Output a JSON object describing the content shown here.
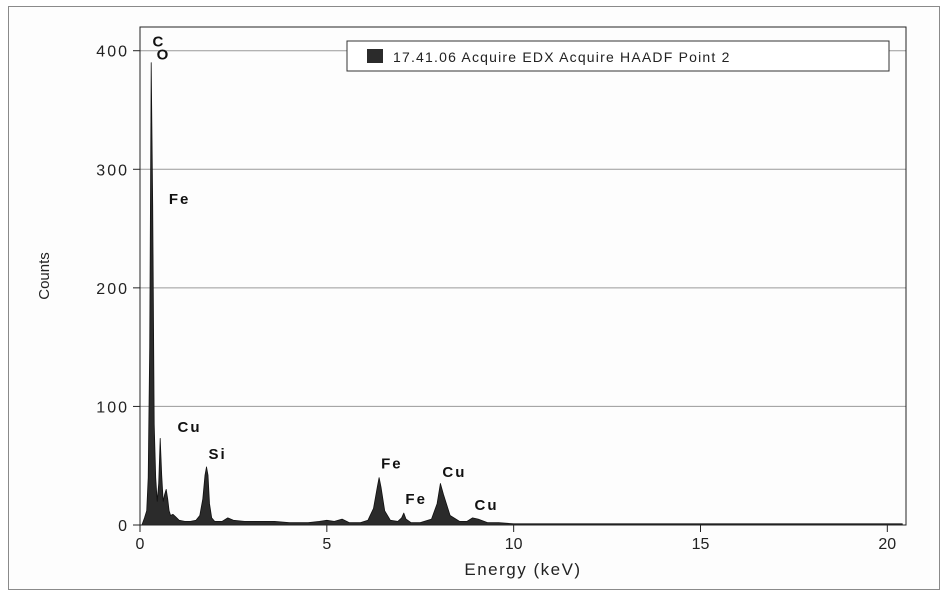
{
  "chart_data": {
    "type": "area",
    "xlabel": "Energy (keV)",
    "ylabel": "Counts",
    "xlim": [
      0,
      20.5
    ],
    "ylim": [
      0,
      420
    ],
    "x_ticks": [
      0,
      5,
      10,
      15,
      20
    ],
    "y_ticks": [
      0,
      100,
      200,
      300,
      400
    ],
    "grid": "horizontal",
    "legend_position": "top-right",
    "series": [
      {
        "name": "17.41.06 Acquire EDX Acquire HAADF Point 2",
        "color": "#2b2b2b",
        "x": [
          0.05,
          0.12,
          0.18,
          0.22,
          0.26,
          0.3,
          0.34,
          0.38,
          0.42,
          0.46,
          0.5,
          0.54,
          0.58,
          0.62,
          0.66,
          0.7,
          0.74,
          0.78,
          0.82,
          0.88,
          0.95,
          1.05,
          1.2,
          1.35,
          1.5,
          1.6,
          1.68,
          1.74,
          1.78,
          1.82,
          1.86,
          1.92,
          2.0,
          2.2,
          2.35,
          2.5,
          2.8,
          3.2,
          3.6,
          4.0,
          4.5,
          4.8,
          5.0,
          5.2,
          5.41,
          5.6,
          5.9,
          6.1,
          6.25,
          6.35,
          6.4,
          6.45,
          6.55,
          6.7,
          6.9,
          7.0,
          7.06,
          7.12,
          7.25,
          7.5,
          7.8,
          7.95,
          8.04,
          8.12,
          8.3,
          8.55,
          8.75,
          8.9,
          9.05,
          9.3,
          9.6,
          10.0,
          11.0,
          12.0,
          13.0,
          14.0,
          15.0,
          16.0,
          17.0,
          18.0,
          19.0,
          20.0,
          20.4
        ],
        "values": [
          0,
          6,
          12,
          40,
          150,
          390,
          270,
          85,
          40,
          20,
          35,
          73,
          42,
          20,
          26,
          30,
          22,
          12,
          8,
          9,
          7,
          4,
          3,
          3,
          4,
          8,
          22,
          42,
          49,
          42,
          18,
          6,
          3,
          3,
          6,
          4,
          3,
          3,
          3,
          2,
          2,
          3,
          4,
          3,
          5,
          2,
          2,
          4,
          14,
          32,
          40,
          32,
          12,
          4,
          3,
          6,
          10,
          5,
          2,
          2,
          5,
          18,
          35,
          26,
          8,
          3,
          3,
          6,
          5,
          2,
          2,
          1,
          1,
          1,
          1,
          1,
          1,
          1,
          1,
          1,
          1,
          1,
          1
        ]
      }
    ],
    "annotations": [
      {
        "text": "C",
        "x": 0.28,
        "y": 401
      },
      {
        "text": "O",
        "x": 0.39,
        "y": 390
      },
      {
        "text": "Fe",
        "x": 0.72,
        "y": 268
      },
      {
        "text": "Cu",
        "x": 0.95,
        "y": 76
      },
      {
        "text": "Si",
        "x": 1.78,
        "y": 53
      },
      {
        "text": "Fe",
        "x": 6.4,
        "y": 45
      },
      {
        "text": "Fe",
        "x": 7.05,
        "y": 15
      },
      {
        "text": "Cu",
        "x": 8.04,
        "y": 38
      },
      {
        "text": "Cu",
        "x": 8.9,
        "y": 10
      }
    ]
  }
}
